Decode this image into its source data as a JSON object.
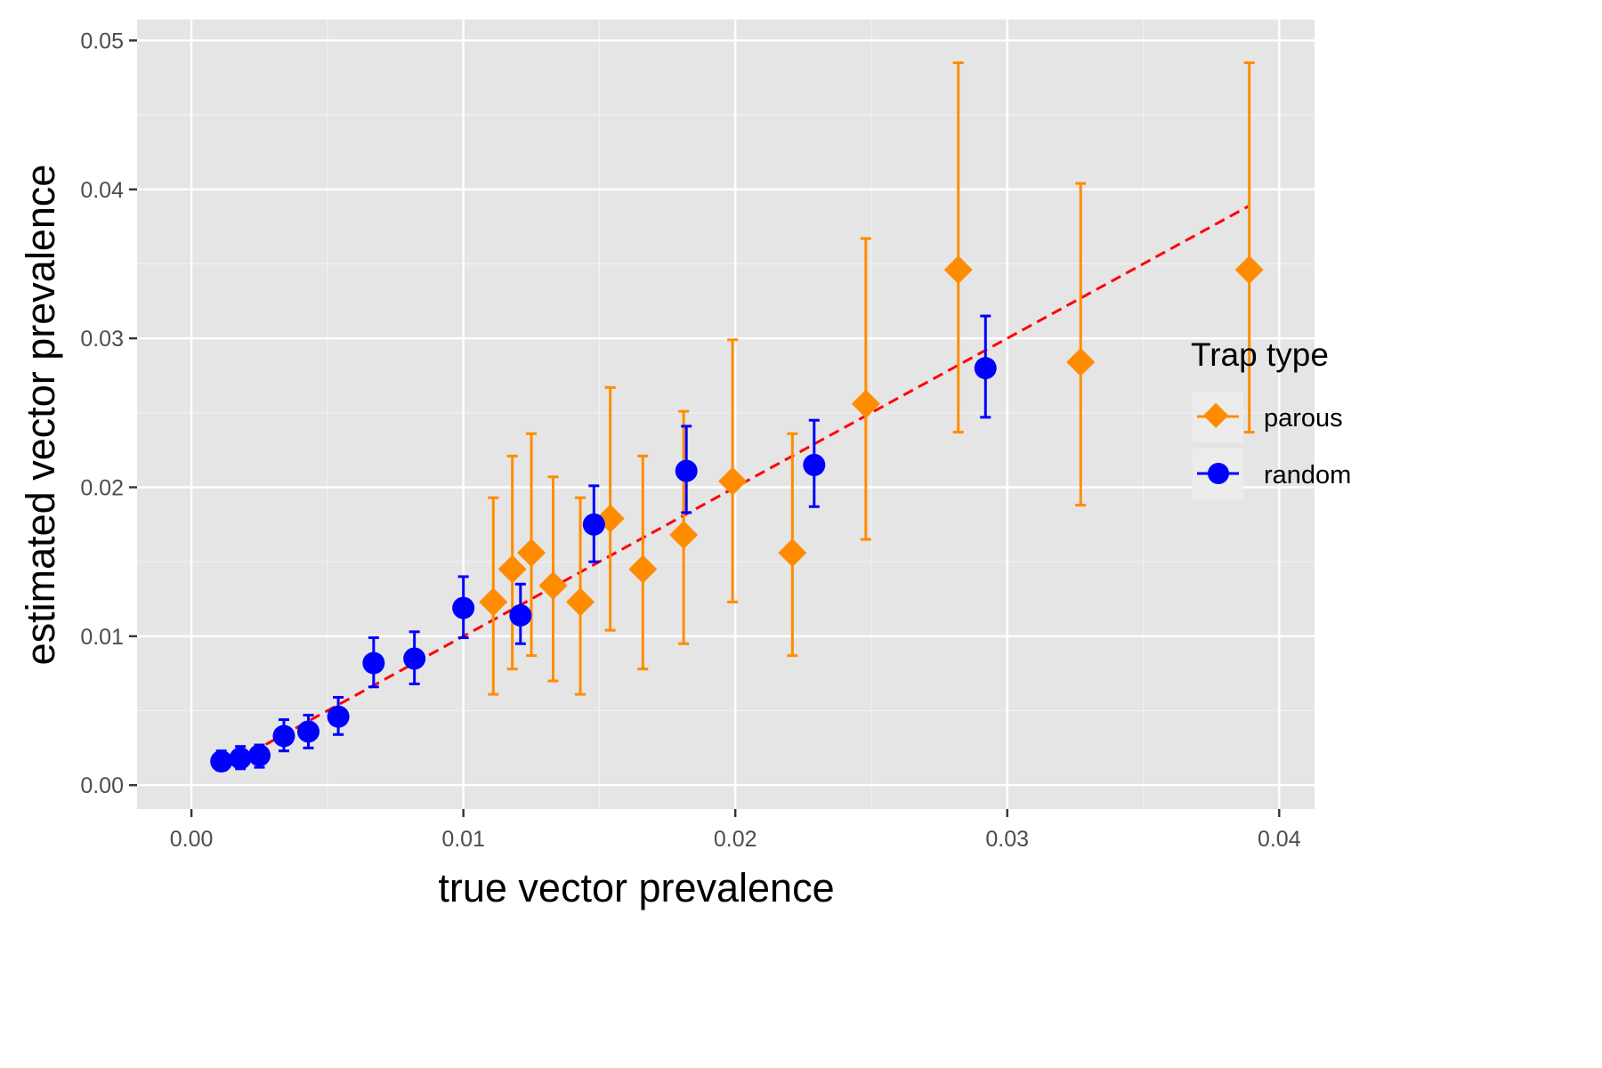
{
  "chart_data": {
    "type": "scatter",
    "xlabel": "true vector prevalence",
    "ylabel": "estimated vector prevalence",
    "xlim": [
      -0.002,
      0.0413
    ],
    "ylim": [
      -0.0016,
      0.0514
    ],
    "x_ticks": [
      0.0,
      0.01,
      0.02,
      0.03,
      0.04
    ],
    "x_tick_labels": [
      "0.00",
      "0.01",
      "0.02",
      "0.03",
      "0.04"
    ],
    "y_ticks": [
      0.0,
      0.01,
      0.02,
      0.03,
      0.04,
      0.05
    ],
    "y_tick_labels": [
      "0.00",
      "0.01",
      "0.02",
      "0.03",
      "0.04",
      "0.05"
    ],
    "grid": true,
    "panel_background": "#e5e5e5",
    "legend": {
      "title": "Trap type",
      "placement": "right",
      "entries": [
        {
          "label": "parous",
          "color": "#ff8c00",
          "shape": "diamond"
        },
        {
          "label": "random",
          "color": "#0000ff",
          "shape": "circle"
        }
      ]
    },
    "reference_line": {
      "style": "dashed",
      "color": "#ff0000",
      "x": [
        0.0011,
        0.0389
      ],
      "y": [
        0.0011,
        0.0389
      ]
    },
    "series": [
      {
        "name": "parous",
        "color": "#ff8c00",
        "shape": "diamond",
        "points": [
          {
            "x": 0.0111,
            "y": 0.0123,
            "ymin": 0.0061,
            "ymax": 0.0193
          },
          {
            "x": 0.0118,
            "y": 0.0145,
            "ymin": 0.0078,
            "ymax": 0.0221
          },
          {
            "x": 0.0125,
            "y": 0.0156,
            "ymin": 0.0087,
            "ymax": 0.0236
          },
          {
            "x": 0.0133,
            "y": 0.0134,
            "ymin": 0.007,
            "ymax": 0.0207
          },
          {
            "x": 0.0143,
            "y": 0.0123,
            "ymin": 0.0061,
            "ymax": 0.0193
          },
          {
            "x": 0.0154,
            "y": 0.0179,
            "ymin": 0.0104,
            "ymax": 0.0267
          },
          {
            "x": 0.0166,
            "y": 0.0145,
            "ymin": 0.0078,
            "ymax": 0.0221
          },
          {
            "x": 0.0181,
            "y": 0.0168,
            "ymin": 0.0095,
            "ymax": 0.0251
          },
          {
            "x": 0.0199,
            "y": 0.0204,
            "ymin": 0.0123,
            "ymax": 0.0299
          },
          {
            "x": 0.0221,
            "y": 0.0156,
            "ymin": 0.0087,
            "ymax": 0.0236
          },
          {
            "x": 0.0248,
            "y": 0.0256,
            "ymin": 0.0165,
            "ymax": 0.0367
          },
          {
            "x": 0.0282,
            "y": 0.0346,
            "ymin": 0.0237,
            "ymax": 0.0485
          },
          {
            "x": 0.0327,
            "y": 0.0284,
            "ymin": 0.0188,
            "ymax": 0.0404
          },
          {
            "x": 0.0389,
            "y": 0.0346,
            "ymin": 0.0237,
            "ymax": 0.0485
          }
        ]
      },
      {
        "name": "random",
        "color": "#0000ff",
        "shape": "circle",
        "points": [
          {
            "x": 0.0011,
            "y": 0.0016,
            "ymin": 0.001,
            "ymax": 0.0023
          },
          {
            "x": 0.0018,
            "y": 0.0018,
            "ymin": 0.0011,
            "ymax": 0.0026
          },
          {
            "x": 0.0025,
            "y": 0.002,
            "ymin": 0.0012,
            "ymax": 0.0027
          },
          {
            "x": 0.0034,
            "y": 0.0033,
            "ymin": 0.0023,
            "ymax": 0.0044
          },
          {
            "x": 0.0043,
            "y": 0.0036,
            "ymin": 0.0025,
            "ymax": 0.0047
          },
          {
            "x": 0.0054,
            "y": 0.0046,
            "ymin": 0.0034,
            "ymax": 0.0059
          },
          {
            "x": 0.0067,
            "y": 0.0082,
            "ymin": 0.0066,
            "ymax": 0.0099
          },
          {
            "x": 0.0082,
            "y": 0.0085,
            "ymin": 0.0068,
            "ymax": 0.0103
          },
          {
            "x": 0.01,
            "y": 0.0119,
            "ymin": 0.0099,
            "ymax": 0.014
          },
          {
            "x": 0.0121,
            "y": 0.0114,
            "ymin": 0.0095,
            "ymax": 0.0135
          },
          {
            "x": 0.0148,
            "y": 0.0175,
            "ymin": 0.015,
            "ymax": 0.0201
          },
          {
            "x": 0.0182,
            "y": 0.0211,
            "ymin": 0.0183,
            "ymax": 0.0241
          },
          {
            "x": 0.0229,
            "y": 0.0215,
            "ymin": 0.0187,
            "ymax": 0.0245
          },
          {
            "x": 0.0292,
            "y": 0.028,
            "ymin": 0.0247,
            "ymax": 0.0315
          }
        ]
      }
    ]
  }
}
